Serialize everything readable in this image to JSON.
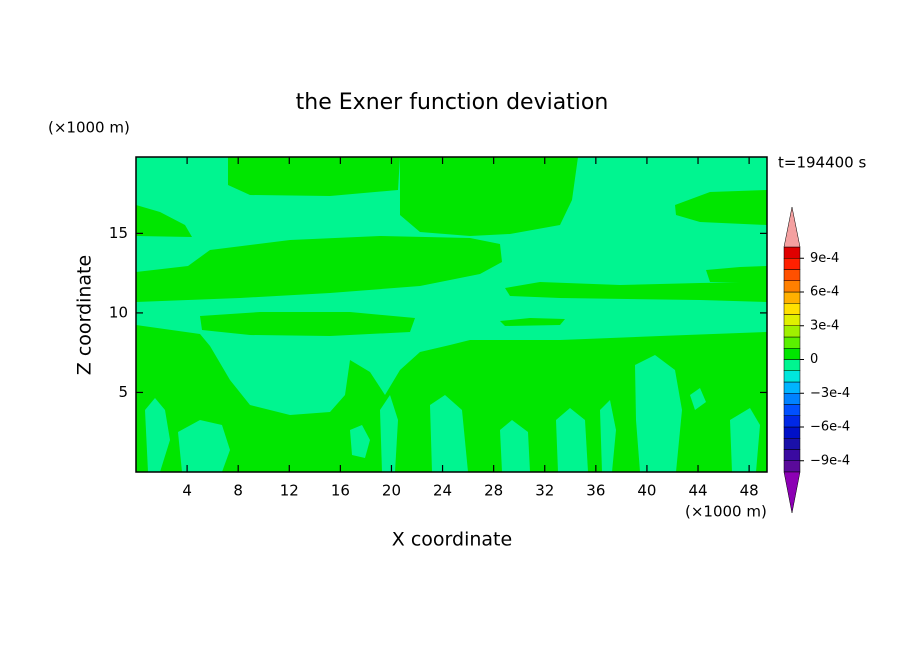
{
  "chart_data": {
    "type": "contour",
    "title": "the Exner function deviation",
    "x_label": "X coordinate",
    "y_label": "Z coordinate",
    "x_unit": "(×1000 m)",
    "y_unit": "(×1000 m)",
    "time_label": "t=194400 s",
    "xlim": [
      0,
      49.4
    ],
    "ylim": [
      0,
      19.8
    ],
    "xticks": [
      4,
      8,
      12,
      16,
      20,
      24,
      28,
      32,
      36,
      40,
      44,
      48
    ],
    "yticks": [
      5,
      10,
      15
    ],
    "levels": [
      -0.001,
      -0.0009,
      -0.0008,
      -0.0007,
      -0.0006,
      -0.0005,
      -0.0004,
      -0.0003,
      -0.0002,
      -0.0001,
      0,
      0.0001,
      0.0002,
      0.0003,
      0.0004,
      0.0005,
      0.0006,
      0.0007,
      0.0008,
      0.0009,
      0.001
    ],
    "colors": [
      "#5a0a9a",
      "#3a0aa0",
      "#1a10a8",
      "#0010c8",
      "#0028e6",
      "#0050ff",
      "#0082ff",
      "#00b4ff",
      "#00e6dc",
      "#00f590",
      "#00e600",
      "#5af000",
      "#a0f000",
      "#e0f000",
      "#ffe000",
      "#ffb000",
      "#ff8000",
      "#ff5000",
      "#ff2000",
      "#e00000"
    ],
    "under_color": "#8c00b4",
    "over_color": "#f4a0a0",
    "cticks": [
      {
        "value": -0.0009,
        "label": "−9e-4"
      },
      {
        "value": -0.0006,
        "label": "−6e-4"
      },
      {
        "value": -0.0003,
        "label": "−3e-4"
      },
      0,
      {
        "value": 0.0003,
        "label": "3e-4"
      },
      {
        "value": 0.0006,
        "label": "6e-4"
      },
      {
        "value": 0.0009,
        "label": "9e-4"
      }
    ]
  }
}
